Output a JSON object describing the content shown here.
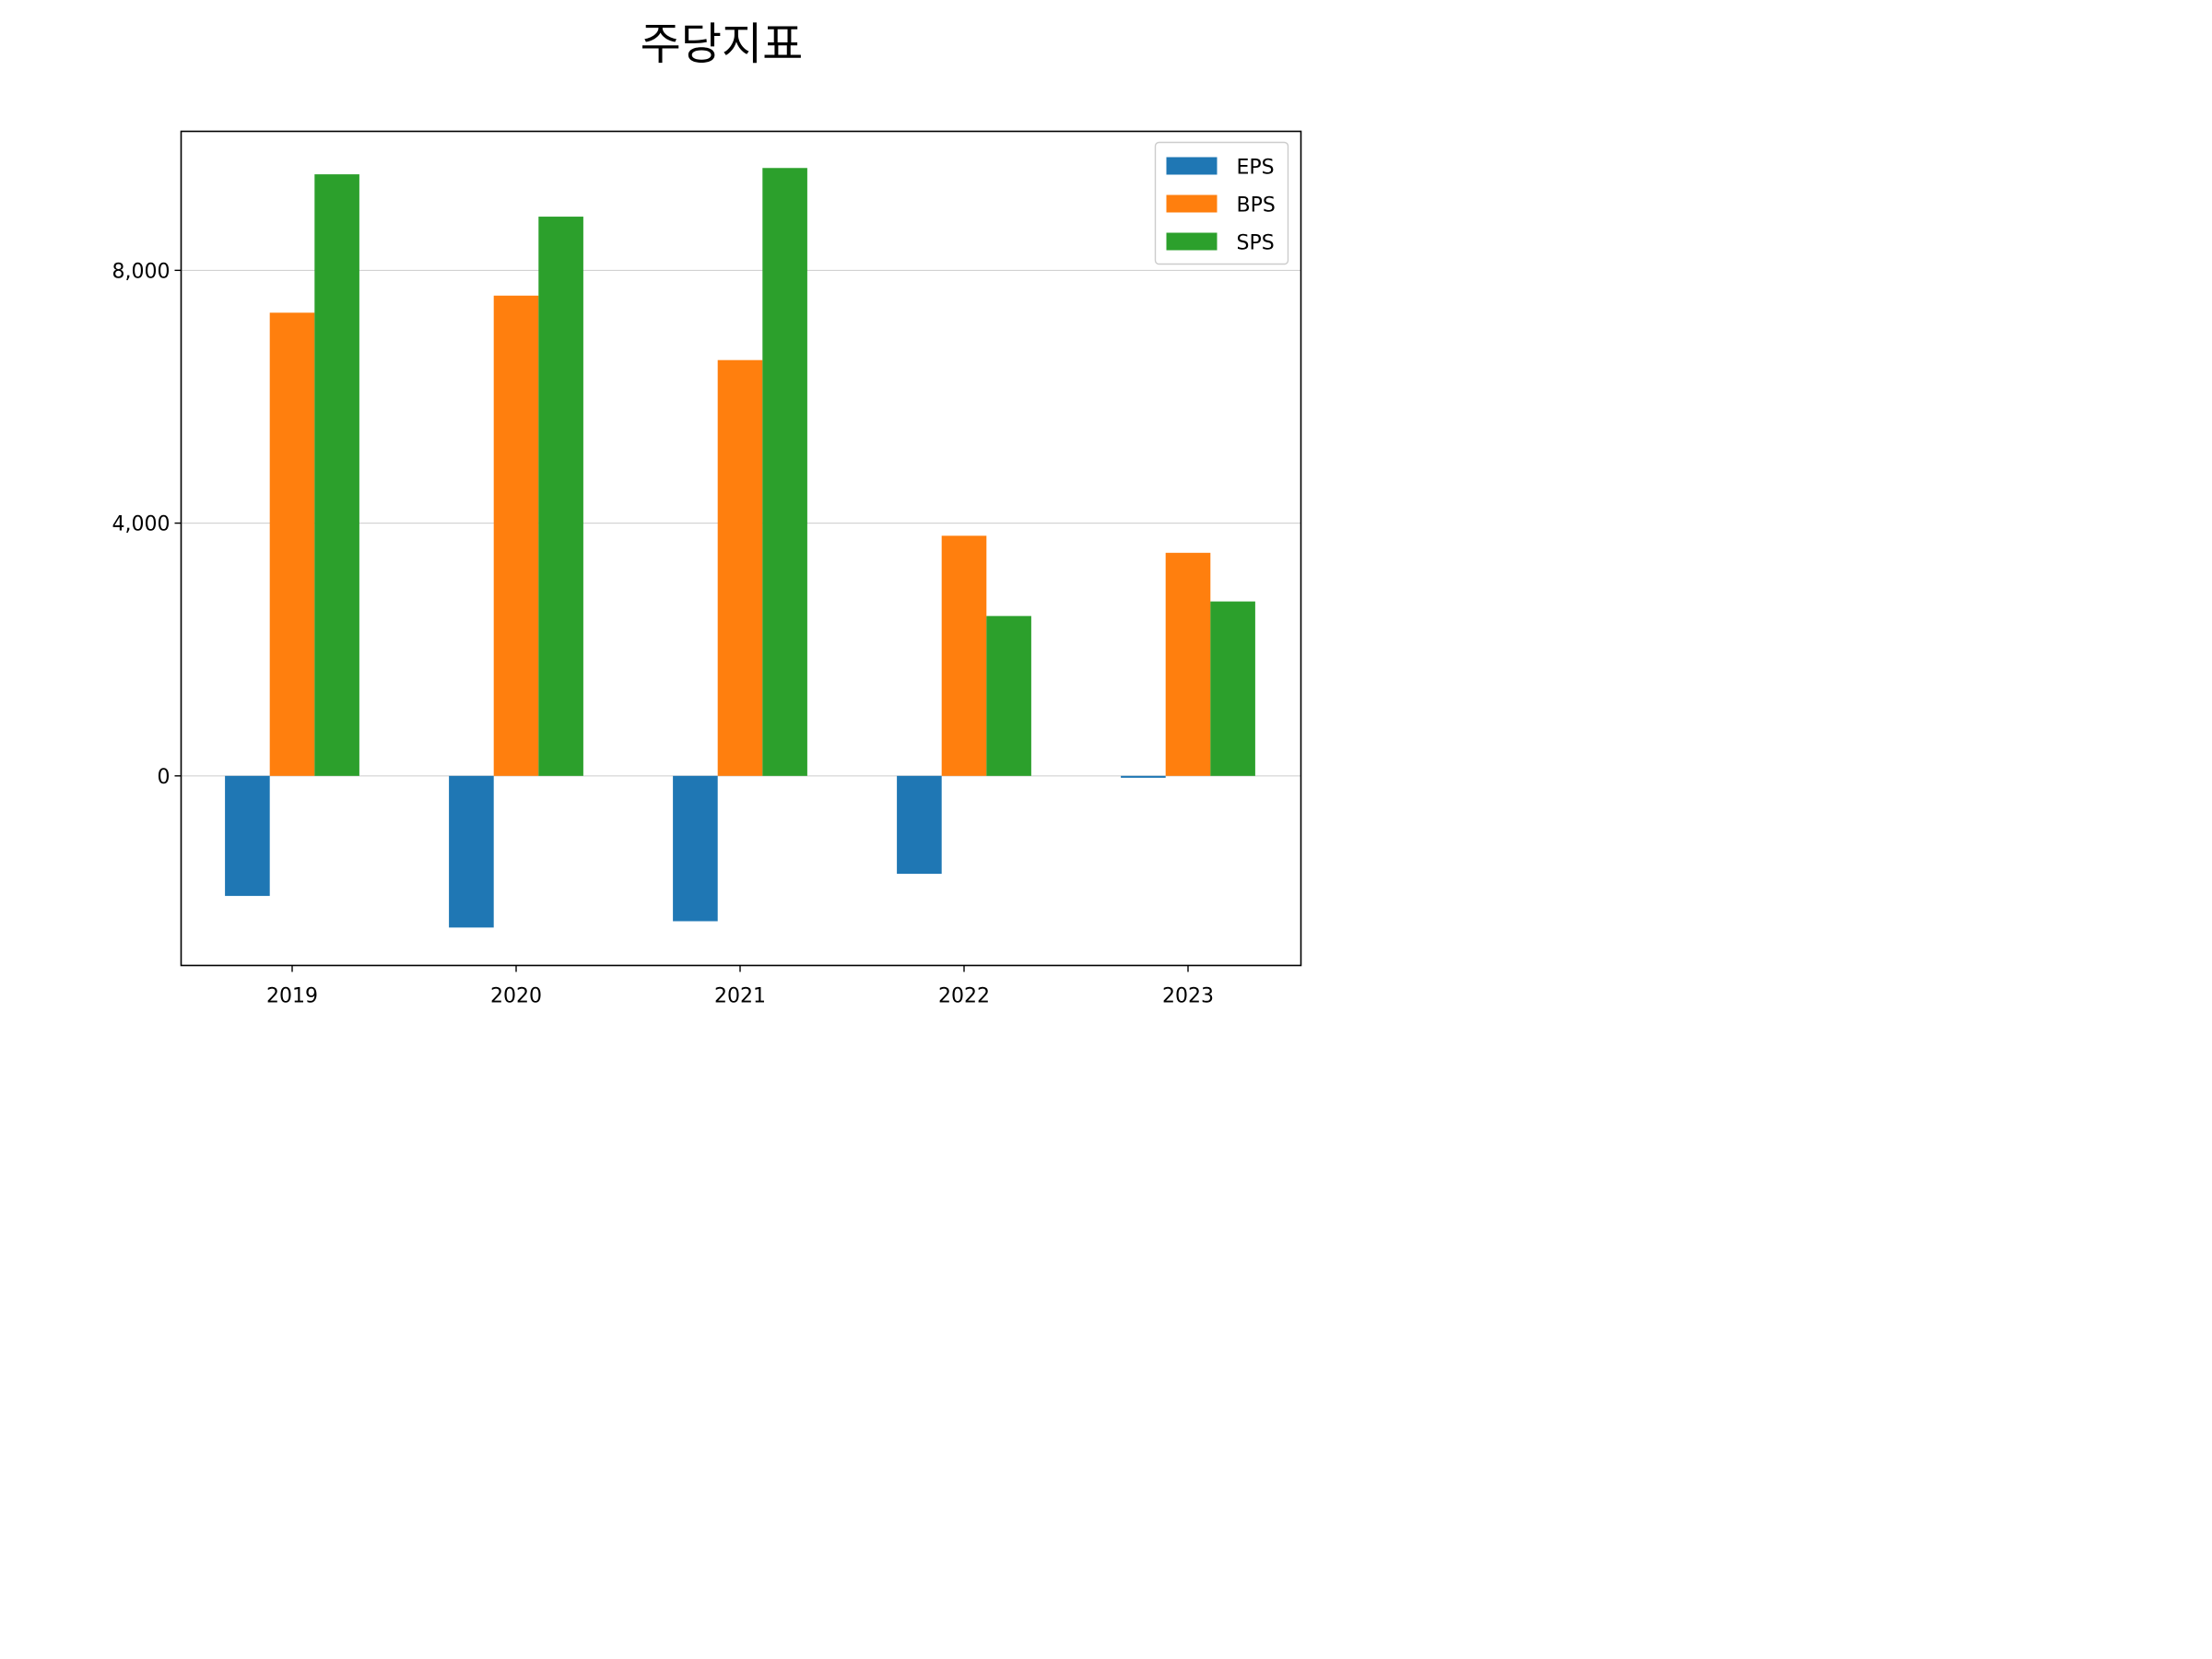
{
  "chart_data": {
    "type": "bar",
    "title": "주당지표",
    "xlabel": "",
    "ylabel": "",
    "categories": [
      "2019",
      "2020",
      "2021",
      "2022",
      "2023"
    ],
    "series": [
      {
        "name": "EPS",
        "color": "#1f77b4",
        "values": [
          -1900,
          -2400,
          -2300,
          -1550,
          -30
        ]
      },
      {
        "name": "BPS",
        "color": "#ff7f0e",
        "values": [
          7330,
          7600,
          6580,
          3800,
          3530
        ]
      },
      {
        "name": "SPS",
        "color": "#2ca02c",
        "values": [
          9520,
          8850,
          9620,
          2530,
          2760
        ]
      }
    ],
    "ylim": [
      -3000,
      10200
    ],
    "yticks": [
      0,
      4000,
      8000
    ],
    "ytick_labels": [
      "0",
      "4,000",
      "8,000"
    ],
    "grid": {
      "y": true,
      "color": "#cccccc"
    },
    "legend": {
      "placement": "top-right"
    }
  }
}
